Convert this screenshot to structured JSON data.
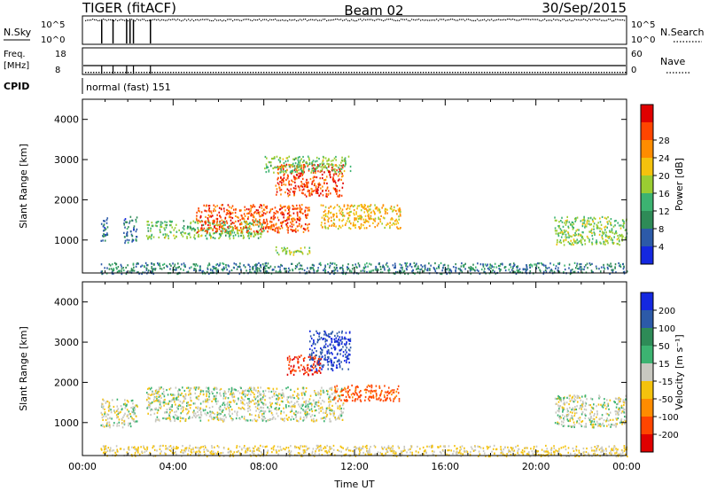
{
  "header": {
    "station": "TIGER (fitACF)",
    "beam": "Beam 02",
    "date": "30/Sep/2015"
  },
  "strips": {
    "nsky_label": "N.Sky",
    "nsky_ticks": [
      "10^5",
      "10^0"
    ],
    "nsearch_label": "N.Search",
    "nsearch_ticks": [
      "10^5",
      "10^0"
    ],
    "freq_label": "Freq.",
    "freq_unit": "[MHz]",
    "freq_ticks": [
      "18",
      "8"
    ],
    "nave_label": "Nave",
    "nave_ticks": [
      "60",
      "0"
    ],
    "cpid_label": "CPID",
    "cpid_value": "normal (fast) 151"
  },
  "colors": {
    "power": [
      "#1428e0",
      "#2c5aa8",
      "#2e8b57",
      "#3cb371",
      "#9acd32",
      "#f4c20d",
      "#ff8c00",
      "#ff4500",
      "#e00000"
    ],
    "velocity": [
      "#e00000",
      "#ff4500",
      "#ff8c00",
      "#f4c20d",
      "#c8c8c0",
      "#3cb371",
      "#2e8b57",
      "#2c5aa8",
      "#1428e0"
    ]
  },
  "chart_data": [
    {
      "type": "heatmap",
      "ylabel": "Slant Range [km]",
      "ylim": [
        180,
        4500
      ],
      "yticks": [
        "1000",
        "2000",
        "3000",
        "4000"
      ],
      "xlim": [
        0,
        24
      ],
      "colorbar": {
        "label": "Power [dB]",
        "range": [
          0,
          32
        ],
        "ticks": [
          "4",
          "8",
          "12",
          "16",
          "20",
          "24",
          "28"
        ]
      },
      "echo_regions": [
        {
          "start_ut": 0.8,
          "end_ut": 1.1,
          "range_km": [
            950,
            1600
          ],
          "power_db": 6
        },
        {
          "start_ut": 1.8,
          "end_ut": 2.4,
          "range_km": [
            950,
            1600
          ],
          "power_db": 7
        },
        {
          "start_ut": 2.8,
          "end_ut": 8.0,
          "range_km": [
            1050,
            1500
          ],
          "power_db": 14
        },
        {
          "start_ut": 5.0,
          "end_ut": 10.0,
          "range_km": [
            1200,
            1900
          ],
          "power_db": 26
        },
        {
          "start_ut": 8.5,
          "end_ut": 11.5,
          "range_km": [
            2100,
            2900
          ],
          "power_db": 27
        },
        {
          "start_ut": 8.0,
          "end_ut": 11.8,
          "range_km": [
            2700,
            3100
          ],
          "power_db": 14
        },
        {
          "start_ut": 10.5,
          "end_ut": 14.0,
          "range_km": [
            1300,
            1900
          ],
          "power_db": 20
        },
        {
          "start_ut": 8.5,
          "end_ut": 10.0,
          "range_km": [
            650,
            850
          ],
          "power_db": 16
        },
        {
          "start_ut": 20.8,
          "end_ut": 24.0,
          "range_km": [
            900,
            1600
          ],
          "power_db": 15
        },
        {
          "start_ut": 0.8,
          "end_ut": 24.0,
          "range_km": [
            180,
            450
          ],
          "power_db": 8
        }
      ]
    },
    {
      "type": "heatmap",
      "ylabel": "Slant Range [km]",
      "ylim": [
        180,
        4500
      ],
      "yticks": [
        "1000",
        "2000",
        "3000",
        "4000"
      ],
      "xlim": [
        0,
        24
      ],
      "xlabel": "Time UT",
      "xticks": [
        "00:00",
        "04:00",
        "08:00",
        "12:00",
        "16:00",
        "20:00",
        "00:00"
      ],
      "colorbar": {
        "label": "Velocity [m s⁻¹]",
        "levels": [
          -250,
          -200,
          -100,
          -50,
          -15,
          15,
          50,
          100,
          200,
          250
        ],
        "ticks": [
          "200",
          "100",
          "50",
          "15",
          "-15",
          "-50",
          "-100",
          "-200"
        ]
      },
      "echo_regions": [
        {
          "start_ut": 0.8,
          "end_ut": 2.4,
          "range_km": [
            900,
            1600
          ],
          "velocity_ms": 0
        },
        {
          "start_ut": 2.8,
          "end_ut": 11.5,
          "range_km": [
            1050,
            1900
          ],
          "velocity_ms": 0
        },
        {
          "start_ut": 9.0,
          "end_ut": 10.5,
          "range_km": [
            2200,
            2700
          ],
          "velocity_ms": -200
        },
        {
          "start_ut": 10.0,
          "end_ut": 11.8,
          "range_km": [
            2300,
            3300
          ],
          "velocity_ms": 200
        },
        {
          "start_ut": 11.0,
          "end_ut": 14.0,
          "range_km": [
            1550,
            1950
          ],
          "velocity_ms": -120
        },
        {
          "start_ut": 20.8,
          "end_ut": 24.0,
          "range_km": [
            900,
            1700
          ],
          "velocity_ms": 0
        },
        {
          "start_ut": 0.8,
          "end_ut": 24.0,
          "range_km": [
            180,
            450
          ],
          "velocity_ms": -20
        }
      ]
    }
  ]
}
